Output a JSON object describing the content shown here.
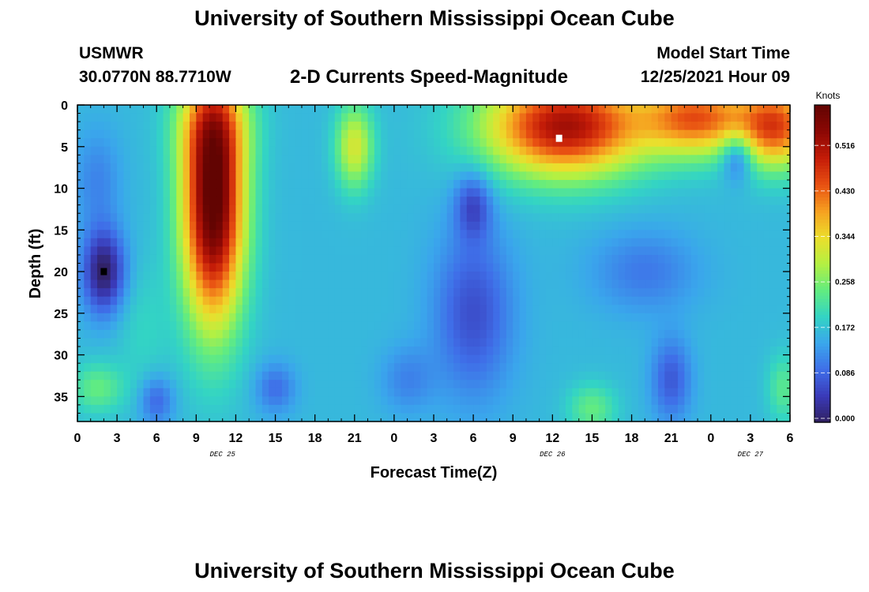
{
  "header": {
    "title": "University of Southern Mississippi Ocean Cube",
    "station": "USMWR",
    "coords": "30.0770N  88.7710W",
    "subtitle": "2-D Currents Speed-Magnitude",
    "model_start_label": "Model Start Time",
    "model_start_value": "12/25/2021 Hour 09"
  },
  "footer": {
    "title": "University of Southern Mississippi Ocean Cube"
  },
  "chart_data": {
    "type": "heatmap",
    "title": "2-D Currents Speed-Magnitude",
    "xlabel": "Forecast Time(Z)",
    "ylabel": "Depth (ft)",
    "x_unit": "forecast hour from 2021-12-25 00Z",
    "xlim": [
      0,
      54
    ],
    "ylim": [
      0,
      38
    ],
    "y_inverted": true,
    "x_tick_labels": [
      "0",
      "3",
      "6",
      "9",
      "12",
      "15",
      "18",
      "21",
      "0",
      "3",
      "6",
      "9",
      "12",
      "15",
      "18",
      "21",
      "0",
      "3",
      "6"
    ],
    "y_tick_labels": [
      "0",
      "5",
      "10",
      "15",
      "20",
      "25",
      "30",
      "35"
    ],
    "date_labels": [
      {
        "text": "DEC 25",
        "hour": 11
      },
      {
        "text": "DEC 26",
        "hour": 36
      },
      {
        "text": "DEC 27",
        "hour": 51
      }
    ],
    "colorbar": {
      "label": "Knots",
      "min": 0,
      "max": 0.6,
      "ticks": [
        "0.000",
        "0.086",
        "0.172",
        "0.258",
        "0.344",
        "0.430",
        "0.516"
      ],
      "colors": [
        "#302060",
        "#3a3ab8",
        "#3f6ee8",
        "#3aa6ec",
        "#33d4c4",
        "#62ec80",
        "#b4f042",
        "#ecde2c",
        "#f6a020",
        "#e85012",
        "#c41c08",
        "#8c0804",
        "#620402"
      ]
    },
    "speed_features_knots": [
      {
        "label": "surface-to-mid-depth core",
        "hour_range": [
          8,
          13
        ],
        "depth_ft_range": [
          0,
          28
        ],
        "speed": 0.58
      },
      {
        "label": "upper-layer maximum",
        "hour": 36.5,
        "depth_ft": 4,
        "speed": 0.6
      },
      {
        "label": "upper layer jet",
        "hour_range": [
          32,
          54
        ],
        "depth_ft_range": [
          0,
          9
        ],
        "speed": 0.5
      },
      {
        "label": "near-surface patch",
        "hour": 21,
        "depth_ft": 5,
        "speed": 0.33
      },
      {
        "label": "minimum",
        "hour": 2,
        "depth_ft": 20,
        "speed": 0.0
      },
      {
        "label": "bottom patch",
        "hour": 1.5,
        "depth_ft": 34,
        "speed": 0.25
      },
      {
        "label": "bottom patch",
        "hour": 39,
        "depth_ft": 36,
        "speed": 0.24
      },
      {
        "label": "mid-depth low",
        "hour": 30,
        "depth_ft": 25,
        "speed": 0.07
      },
      {
        "label": "bottom low",
        "hour": 45,
        "depth_ft": 34,
        "speed": 0.06
      }
    ],
    "markers": [
      {
        "hour": 2,
        "depth_ft": 20,
        "color": "#000000"
      },
      {
        "hour": 36.5,
        "depth_ft": 4,
        "color": "#ffffff"
      }
    ]
  }
}
